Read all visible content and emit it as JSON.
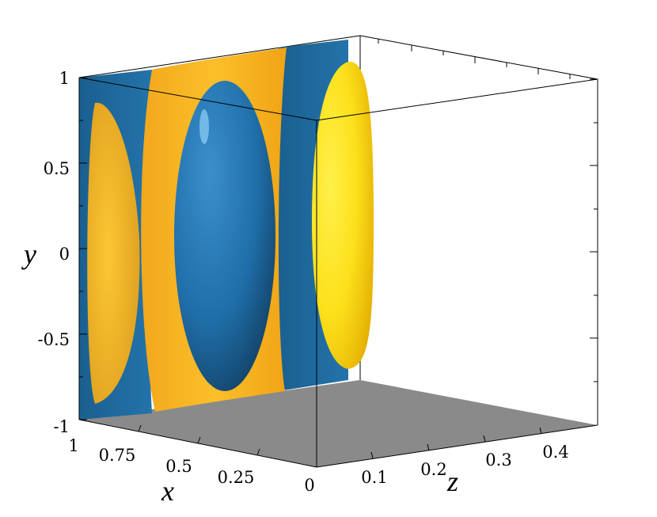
{
  "figure": {
    "axes": {
      "y": {
        "title": "y",
        "ticks": [
          "1",
          "0.5",
          "0",
          "-0.5",
          "-1"
        ]
      },
      "x": {
        "title": "x",
        "ticks": [
          "1",
          "0.75",
          "0.5",
          "0.25",
          "0"
        ]
      },
      "z": {
        "title": "z",
        "ticks": [
          "0.1",
          "0.2",
          "0.3",
          "0.4"
        ]
      }
    },
    "colors": {
      "positive_isosurface": "#f8b820",
      "negative_isosurface": "#1e6fa5",
      "floor": "#8a8a8a",
      "box_edges": "#000000"
    }
  }
}
